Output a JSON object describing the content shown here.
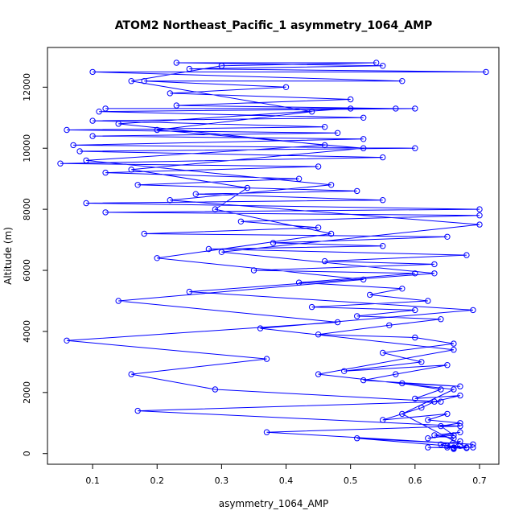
{
  "chart_data": {
    "type": "line",
    "title": "ATOM2 Northeast_Pacific_1 asymmetry_1064_AMP",
    "xlabel": "asymmetry_1064_AMP",
    "ylabel": "Altitude (m)",
    "xlim": [
      0.03,
      0.73
    ],
    "ylim": [
      -350,
      13300
    ],
    "x_ticks": [
      0.1,
      0.2,
      0.3,
      0.4,
      0.5,
      0.6,
      0.7
    ],
    "x_tick_labels": [
      "0.1",
      "0.2",
      "0.3",
      "0.4",
      "0.5",
      "0.6",
      "0.7"
    ],
    "y_ticks": [
      0,
      2000,
      4000,
      6000,
      8000,
      10000,
      12000
    ],
    "y_tick_labels": [
      "0",
      "2000",
      "4000",
      "6000",
      "8000",
      "10000",
      "12000"
    ],
    "grid": false,
    "legend": "none",
    "marker": "open-circle",
    "colors": {
      "series": "#0000ff",
      "frame": "#000000"
    },
    "series": [
      {
        "name": "",
        "points": [
          [
            0.66,
            150
          ],
          [
            0.67,
            250
          ],
          [
            0.65,
            200
          ],
          [
            0.66,
            180
          ],
          [
            0.64,
            300
          ],
          [
            0.67,
            400
          ],
          [
            0.66,
            200
          ],
          [
            0.69,
            200
          ],
          [
            0.62,
            200
          ],
          [
            0.68,
            180
          ],
          [
            0.65,
            250
          ],
          [
            0.66,
            500
          ],
          [
            0.63,
            600
          ],
          [
            0.67,
            700
          ],
          [
            0.62,
            500
          ],
          [
            0.66,
            600
          ],
          [
            0.64,
            900
          ],
          [
            0.67,
            1000
          ],
          [
            0.62,
            1100
          ],
          [
            0.65,
            1300
          ],
          [
            0.55,
            1100
          ],
          [
            0.61,
            1500
          ],
          [
            0.63,
            1700
          ],
          [
            0.67,
            1900
          ],
          [
            0.6,
            1800
          ],
          [
            0.64,
            2100
          ],
          [
            0.58,
            2300
          ],
          [
            0.67,
            2200
          ],
          [
            0.52,
            2400
          ],
          [
            0.57,
            2600
          ],
          [
            0.65,
            2900
          ],
          [
            0.49,
            2700
          ],
          [
            0.61,
            3000
          ],
          [
            0.55,
            3300
          ],
          [
            0.66,
            3600
          ],
          [
            0.6,
            3800
          ],
          [
            0.45,
            3900
          ],
          [
            0.56,
            4200
          ],
          [
            0.64,
            4400
          ],
          [
            0.51,
            4500
          ],
          [
            0.6,
            4700
          ],
          [
            0.44,
            4800
          ],
          [
            0.62,
            5000
          ],
          [
            0.53,
            5200
          ],
          [
            0.58,
            5400
          ],
          [
            0.42,
            5600
          ],
          [
            0.6,
            5900
          ],
          [
            0.35,
            6000
          ],
          [
            0.63,
            6200
          ],
          [
            0.46,
            6300
          ],
          [
            0.68,
            6500
          ],
          [
            0.28,
            6700
          ],
          [
            0.55,
            6800
          ],
          [
            0.38,
            6900
          ],
          [
            0.65,
            7100
          ],
          [
            0.18,
            7200
          ],
          [
            0.45,
            7400
          ],
          [
            0.33,
            7600
          ],
          [
            0.7,
            7800
          ],
          [
            0.12,
            7900
          ],
          [
            0.7,
            8000
          ],
          [
            0.09,
            8200
          ],
          [
            0.55,
            8300
          ],
          [
            0.26,
            8500
          ],
          [
            0.51,
            8600
          ],
          [
            0.17,
            8800
          ],
          [
            0.42,
            9000
          ],
          [
            0.12,
            9200
          ],
          [
            0.45,
            9400
          ],
          [
            0.05,
            9500
          ],
          [
            0.55,
            9700
          ],
          [
            0.08,
            9900
          ],
          [
            0.6,
            10000
          ],
          [
            0.07,
            10100
          ],
          [
            0.52,
            10300
          ],
          [
            0.1,
            10400
          ],
          [
            0.48,
            10500
          ],
          [
            0.06,
            10600
          ],
          [
            0.46,
            10700
          ],
          [
            0.1,
            10900
          ],
          [
            0.52,
            11000
          ],
          [
            0.11,
            11200
          ],
          [
            0.6,
            11300
          ],
          [
            0.12,
            11300
          ],
          [
            0.57,
            11300
          ],
          [
            0.23,
            11400
          ],
          [
            0.5,
            11600
          ],
          [
            0.22,
            11800
          ],
          [
            0.4,
            12000
          ],
          [
            0.18,
            12200
          ],
          [
            0.58,
            12200
          ],
          [
            0.1,
            12500
          ],
          [
            0.71,
            12500
          ],
          [
            0.25,
            12600
          ],
          [
            0.55,
            12700
          ],
          [
            0.23,
            12800
          ],
          [
            0.54,
            12800
          ],
          [
            0.3,
            12700
          ],
          [
            0.16,
            12200
          ],
          [
            0.44,
            11200
          ],
          [
            0.2,
            10600
          ],
          [
            0.52,
            10000
          ],
          [
            0.16,
            9300
          ],
          [
            0.34,
            8700
          ],
          [
            0.29,
            8000
          ],
          [
            0.47,
            7200
          ],
          [
            0.2,
            6400
          ],
          [
            0.52,
            5700
          ],
          [
            0.14,
            5000
          ],
          [
            0.48,
            4300
          ],
          [
            0.06,
            3700
          ],
          [
            0.37,
            3100
          ],
          [
            0.16,
            2600
          ],
          [
            0.29,
            2100
          ],
          [
            0.64,
            1700
          ],
          [
            0.17,
            1400
          ],
          [
            0.67,
            900
          ],
          [
            0.37,
            700
          ],
          [
            0.69,
            300
          ],
          [
            0.51,
            500
          ],
          [
            0.68,
            200
          ],
          [
            0.58,
            1300
          ],
          [
            0.66,
            2100
          ],
          [
            0.45,
            2600
          ],
          [
            0.66,
            3400
          ],
          [
            0.36,
            4100
          ],
          [
            0.69,
            4700
          ],
          [
            0.25,
            5300
          ],
          [
            0.63,
            5900
          ],
          [
            0.3,
            6600
          ],
          [
            0.7,
            7500
          ],
          [
            0.22,
            8300
          ],
          [
            0.47,
            8800
          ],
          [
            0.09,
            9600
          ],
          [
            0.46,
            10100
          ],
          [
            0.14,
            10800
          ],
          [
            0.5,
            11300
          ]
        ]
      }
    ]
  }
}
